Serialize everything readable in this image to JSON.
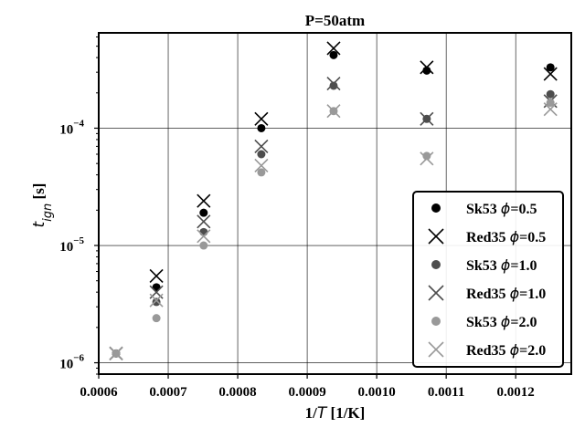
{
  "chart_data": {
    "type": "scatter",
    "title": "P=50atm",
    "xlabel": {
      "pre": "1/",
      "var": "T",
      "post": " [1/K]"
    },
    "ylabel": {
      "var": "t",
      "sub": "ign",
      "post": " [s]"
    },
    "xlim": [
      0.0006,
      0.00128
    ],
    "ylim": [
      8e-07,
      0.00065
    ],
    "yscale": "log",
    "grid": true,
    "legend_position": "lower right",
    "x_ticks": [
      {
        "value": 0.0006,
        "label": "0.0006"
      },
      {
        "value": 0.0007,
        "label": "0.0007"
      },
      {
        "value": 0.0008,
        "label": "0.0008"
      },
      {
        "value": 0.0009,
        "label": "0.0009"
      },
      {
        "value": 0.001,
        "label": "0.0010"
      },
      {
        "value": 0.0011,
        "label": "0.0011"
      },
      {
        "value": 0.0012,
        "label": "0.0012"
      }
    ],
    "y_ticks": [
      {
        "value": 1e-06,
        "base": "10",
        "exp": "−6"
      },
      {
        "value": 1e-05,
        "base": "10",
        "exp": "−5"
      },
      {
        "value": 0.0001,
        "base": "10",
        "exp": "−4"
      }
    ],
    "x": [
      0.000625,
      0.000683,
      0.000751,
      0.000834,
      0.000938,
      0.001072,
      0.00125
    ],
    "series": [
      {
        "name": "Sk53 ϕ=0.5",
        "label_pre": "Sk53 ",
        "label_phi": "ϕ",
        "label_post": "=0.5",
        "marker": "circle",
        "color": "#000000",
        "values": [
          1.2e-06,
          4.4e-06,
          1.9e-05,
          0.0001,
          0.00042,
          0.00031,
          0.00033
        ]
      },
      {
        "name": "Red35 ϕ=0.5",
        "label_pre": "Red35 ",
        "label_phi": "ϕ",
        "label_post": "=0.5",
        "marker": "x",
        "color": "#000000",
        "values": [
          1.2e-06,
          5.5e-06,
          2.4e-05,
          0.00012,
          0.00048,
          0.00033,
          0.00029
        ]
      },
      {
        "name": "Sk53 ϕ=1.0",
        "label_pre": "Sk53 ",
        "label_phi": "ϕ",
        "label_post": "=1.0",
        "marker": "circle",
        "color": "#4d4d4d",
        "values": [
          1.2e-06,
          3.3e-06,
          1.3e-05,
          6e-05,
          0.00023,
          0.00012,
          0.000195
        ]
      },
      {
        "name": "Red35 ϕ=1.0",
        "label_pre": "Red35 ",
        "label_phi": "ϕ",
        "label_post": "=1.0",
        "marker": "x",
        "color": "#4d4d4d",
        "values": [
          1.2e-06,
          4e-06,
          1.6e-05,
          7e-05,
          0.00024,
          0.00012,
          0.00017
        ]
      },
      {
        "name": "Sk53 ϕ=2.0",
        "label_pre": "Sk53 ",
        "label_phi": "ϕ",
        "label_post": "=2.0",
        "marker": "circle",
        "color": "#999999",
        "values": [
          1.2e-06,
          2.4e-06,
          1e-05,
          4.2e-05,
          0.00014,
          5.8e-05,
          0.000165
        ]
      },
      {
        "name": "Red35 ϕ=2.0",
        "label_pre": "Red35 ",
        "label_phi": "ϕ",
        "label_post": "=2.0",
        "marker": "x",
        "color": "#999999",
        "values": [
          1.2e-06,
          3.4e-06,
          1.2e-05,
          4.8e-05,
          0.00014,
          5.5e-05,
          0.000145
        ]
      }
    ]
  }
}
